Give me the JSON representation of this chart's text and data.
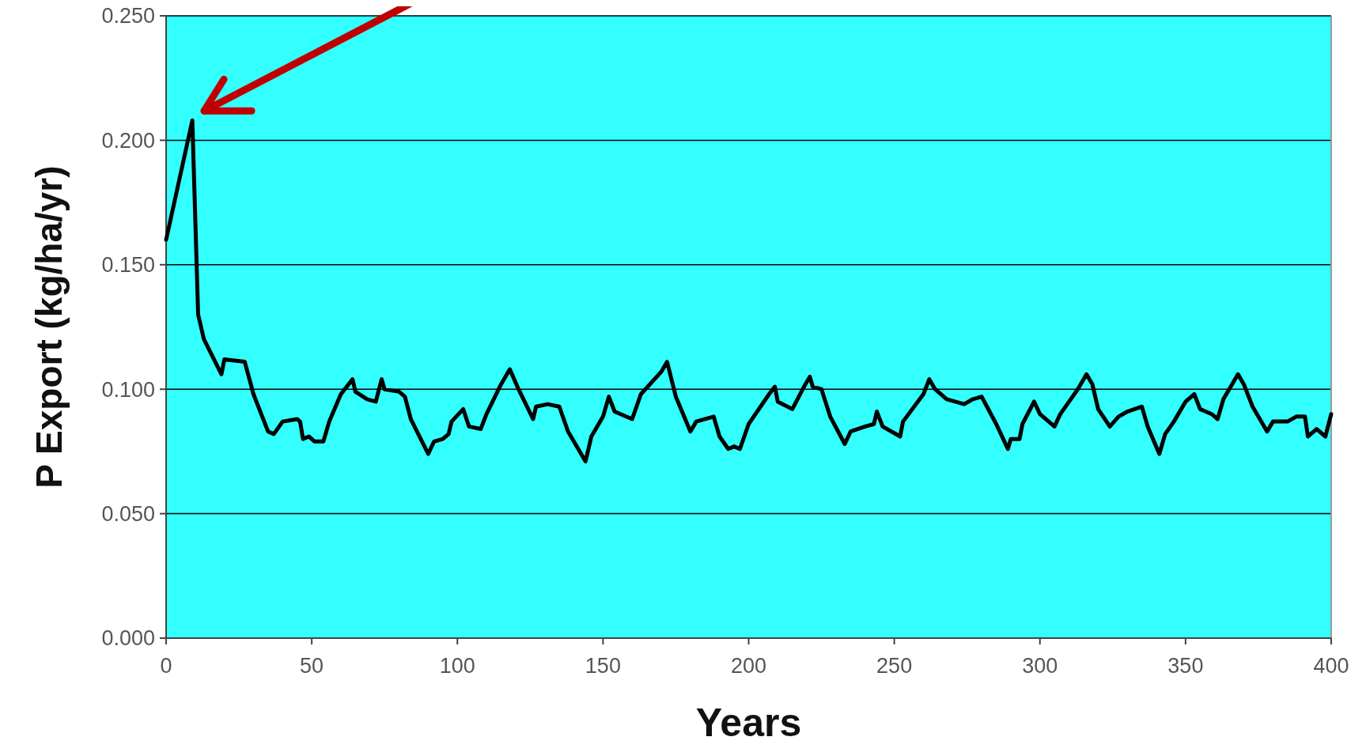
{
  "chart_data": {
    "type": "line",
    "xlabel": "Years",
    "ylabel": "P Export (kg/ha/yr)",
    "xlim": [
      0,
      400
    ],
    "xticks": [
      0,
      50,
      100,
      150,
      200,
      250,
      300,
      350,
      400
    ],
    "ylim": [
      0,
      0.25
    ],
    "yticks": [
      {
        "value": 0,
        "label": "0.000"
      },
      {
        "value": 0.05,
        "label": "0.050"
      },
      {
        "value": 0.1,
        "label": "0.100"
      },
      {
        "value": 0.15,
        "label": "0.150"
      },
      {
        "value": 0.2,
        "label": "0.200"
      },
      {
        "value": 0.25,
        "label": "0.250"
      }
    ],
    "grid": "y",
    "series": [
      {
        "color": "#000000",
        "x": [
          0,
          9,
          11,
          13,
          19,
          20,
          27,
          30,
          35,
          37,
          40,
          45,
          46,
          47,
          49,
          51,
          54,
          56,
          60,
          64,
          65,
          69,
          72,
          74,
          75,
          80,
          82,
          84,
          90,
          92,
          95,
          97,
          98,
          102,
          104,
          108,
          110,
          115,
          118,
          121,
          126,
          127,
          131,
          135,
          138,
          144,
          146,
          150,
          152,
          154,
          160,
          163,
          170,
          172,
          175,
          180,
          182,
          188,
          190,
          193,
          195,
          197,
          200,
          207,
          209,
          210,
          215,
          219,
          221,
          222,
          225,
          228,
          233,
          235,
          240,
          243,
          244,
          246,
          252,
          253,
          260,
          262,
          264,
          268,
          274,
          277,
          280,
          285,
          289,
          290,
          293,
          294,
          298,
          300,
          305,
          307,
          313,
          316,
          318,
          320,
          324,
          327,
          330,
          335,
          337,
          341,
          343,
          346,
          350,
          353,
          355,
          359,
          361,
          363,
          368,
          370,
          373,
          378,
          380,
          385,
          388,
          391,
          392,
          395,
          398,
          400
        ],
        "values": [
          0.16,
          0.208,
          0.13,
          0.12,
          0.106,
          0.112,
          0.111,
          0.098,
          0.083,
          0.082,
          0.087,
          0.088,
          0.087,
          0.08,
          0.081,
          0.079,
          0.079,
          0.087,
          0.098,
          0.104,
          0.099,
          0.096,
          0.095,
          0.104,
          0.1,
          0.099,
          0.097,
          0.088,
          0.074,
          0.079,
          0.08,
          0.082,
          0.087,
          0.092,
          0.085,
          0.084,
          0.09,
          0.102,
          0.108,
          0.1,
          0.088,
          0.093,
          0.094,
          0.093,
          0.083,
          0.071,
          0.081,
          0.089,
          0.097,
          0.091,
          0.088,
          0.098,
          0.107,
          0.111,
          0.097,
          0.083,
          0.087,
          0.089,
          0.081,
          0.076,
          0.077,
          0.076,
          0.086,
          0.098,
          0.101,
          0.095,
          0.092,
          0.101,
          0.105,
          0.101,
          0.1,
          0.089,
          0.078,
          0.083,
          0.085,
          0.086,
          0.091,
          0.085,
          0.081,
          0.087,
          0.098,
          0.104,
          0.1,
          0.096,
          0.094,
          0.096,
          0.097,
          0.086,
          0.076,
          0.08,
          0.08,
          0.086,
          0.095,
          0.09,
          0.085,
          0.09,
          0.1,
          0.106,
          0.102,
          0.092,
          0.085,
          0.089,
          0.091,
          0.093,
          0.085,
          0.074,
          0.082,
          0.087,
          0.095,
          0.098,
          0.092,
          0.09,
          0.088,
          0.096,
          0.106,
          0.102,
          0.093,
          0.083,
          0.087,
          0.087,
          0.089,
          0.089,
          0.081,
          0.084,
          0.081,
          0.09
        ]
      }
    ]
  }
}
